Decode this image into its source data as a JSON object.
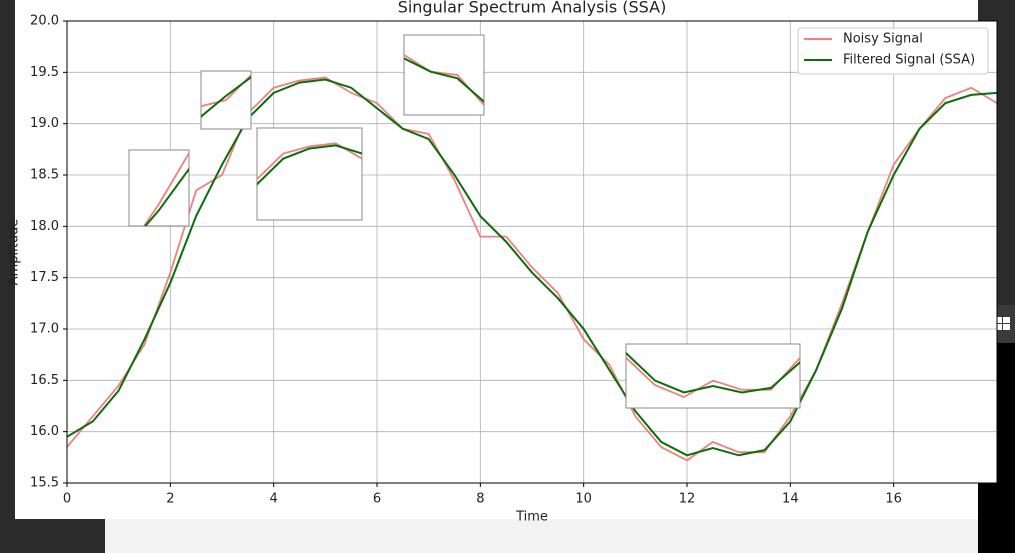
{
  "chart_data": {
    "type": "line",
    "title": "Singular Spectrum Analysis (SSA)",
    "x_label": "Time",
    "y_label": "Amplitude",
    "x": [
      0,
      0.5,
      1,
      1.5,
      2,
      2.5,
      3,
      3.5,
      4,
      4.5,
      5,
      5.5,
      6,
      6.5,
      7,
      7.5,
      8,
      8.5,
      9,
      9.5,
      10,
      10.5,
      11,
      11.5,
      12,
      12.5,
      13,
      13.5,
      14,
      14.5,
      15,
      15.5,
      16,
      16.5,
      17,
      17.5,
      18
    ],
    "series": [
      {
        "name": "Noisy Signal",
        "color": "#f08080",
        "values": [
          15.85,
          16.15,
          16.45,
          16.85,
          17.55,
          18.35,
          18.5,
          19.1,
          19.35,
          19.42,
          19.45,
          19.3,
          19.2,
          18.95,
          18.9,
          18.45,
          17.9,
          17.9,
          17.6,
          17.35,
          16.9,
          16.65,
          16.15,
          15.85,
          15.72,
          15.9,
          15.8,
          15.8,
          16.15,
          16.6,
          17.25,
          17.95,
          18.6,
          18.95,
          19.25,
          19.35,
          19.2
        ]
      },
      {
        "name": "Filtered Signal (SSA)",
        "color": "#0a6e0a",
        "values": [
          15.95,
          16.1,
          16.4,
          16.9,
          17.45,
          18.1,
          18.6,
          19.05,
          19.3,
          19.4,
          19.43,
          19.35,
          19.15,
          18.95,
          18.85,
          18.5,
          18.1,
          17.85,
          17.55,
          17.3,
          17.0,
          16.6,
          16.2,
          15.9,
          15.77,
          15.84,
          15.77,
          15.82,
          16.1,
          16.6,
          17.2,
          17.95,
          18.5,
          18.95,
          19.2,
          19.28,
          19.3
        ]
      }
    ],
    "xlim": [
      0,
      18
    ],
    "ylim": [
      15.5,
      20.0
    ],
    "xticks": [
      0,
      2,
      4,
      6,
      8,
      10,
      12,
      14,
      16
    ],
    "yticks": [
      15.5,
      {
        "value": 16,
        "label": "16.0"
      },
      16.5,
      {
        "value": 17,
        "label": "17.0"
      },
      17.5,
      {
        "value": 18,
        "label": "18.0"
      },
      18.5,
      {
        "value": 19,
        "label": "19.0"
      },
      19.5,
      {
        "value": 20,
        "label": "20.0"
      }
    ],
    "grid": true,
    "legend": "upper right",
    "insets": [
      {
        "xlim": [
          1.5,
          2.5
        ],
        "ylim": [
          17.2,
          18.4
        ]
      },
      {
        "xlim": [
          2.5,
          3.5
        ],
        "ylim": [
          17.8,
          19.2
        ]
      },
      {
        "xlim": [
          3.5,
          5.5
        ],
        "ylim": [
          18.7,
          19.6
        ]
      },
      {
        "xlim": [
          6.0,
          7.5
        ],
        "ylim": [
          18.3,
          19.5
        ]
      },
      {
        "xlim": [
          11.0,
          14.0
        ],
        "ylim": [
          15.6,
          16.3
        ]
      }
    ]
  }
}
